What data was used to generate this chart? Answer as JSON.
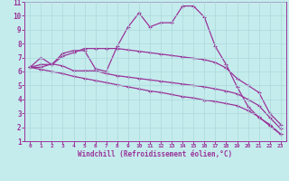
{
  "xlabel": "Windchill (Refroidissement éolien,°C)",
  "xlim": [
    -0.5,
    23.5
  ],
  "ylim": [
    1,
    11
  ],
  "xtick_vals": [
    0,
    1,
    2,
    3,
    4,
    5,
    6,
    7,
    8,
    9,
    10,
    11,
    12,
    13,
    14,
    15,
    16,
    17,
    18,
    19,
    20,
    21,
    22,
    23
  ],
  "ytick_vals": [
    1,
    2,
    3,
    4,
    5,
    6,
    7,
    8,
    9,
    10,
    11
  ],
  "bg_color": "#c5eced",
  "grid_color": "#aad8da",
  "line_color": "#993399",
  "series1": [
    6.3,
    7.0,
    6.5,
    7.3,
    7.5,
    7.5,
    6.2,
    6.0,
    7.8,
    9.2,
    10.2,
    9.2,
    9.5,
    9.5,
    10.7,
    10.7,
    9.9,
    7.8,
    6.5,
    4.9,
    3.5,
    2.7,
    2.2,
    1.5
  ],
  "series2": [
    6.3,
    6.5,
    6.5,
    7.1,
    7.35,
    7.65,
    7.65,
    7.65,
    7.65,
    7.55,
    7.45,
    7.35,
    7.25,
    7.15,
    7.05,
    6.95,
    6.85,
    6.65,
    6.25,
    5.5,
    5.0,
    4.5,
    3.0,
    2.2
  ],
  "series3": [
    6.3,
    6.3,
    6.55,
    6.4,
    6.05,
    6.05,
    6.05,
    5.85,
    5.7,
    5.6,
    5.5,
    5.4,
    5.3,
    5.2,
    5.1,
    5.0,
    4.9,
    4.75,
    4.6,
    4.4,
    4.0,
    3.55,
    2.7,
    1.9
  ],
  "series4": [
    6.3,
    6.15,
    6.0,
    5.85,
    5.65,
    5.5,
    5.35,
    5.2,
    5.05,
    4.9,
    4.75,
    4.6,
    4.5,
    4.35,
    4.2,
    4.1,
    3.95,
    3.85,
    3.7,
    3.55,
    3.2,
    2.75,
    2.1,
    1.5
  ]
}
